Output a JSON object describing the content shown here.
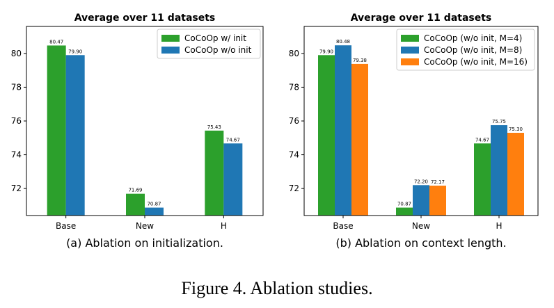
{
  "figure_caption": "Figure 4. Ablation studies.",
  "chart_data": [
    {
      "type": "bar",
      "title": "Average over 11 datasets",
      "subcaption": "(a) Ablation on initialization.",
      "categories": [
        "Base",
        "New",
        "H"
      ],
      "series": [
        {
          "name": "CoCoOp w/ init",
          "color": "#2ca02c",
          "values": [
            80.47,
            71.69,
            75.43
          ],
          "labels": [
            "80.47",
            "71.69",
            "75.43"
          ]
        },
        {
          "name": "CoCoOp w/o init",
          "color": "#1f77b4",
          "values": [
            79.9,
            70.87,
            74.67
          ],
          "labels": [
            "79.90",
            "70.87",
            "74.67"
          ]
        }
      ],
      "ylim": [
        70.4,
        81.6
      ],
      "yticks": [
        "72",
        "74",
        "76",
        "78",
        "80"
      ],
      "legend_position": "upper-right",
      "xlabel": "",
      "ylabel": ""
    },
    {
      "type": "bar",
      "title": "Average over 11 datasets",
      "subcaption": "(b) Ablation on context length.",
      "categories": [
        "Base",
        "New",
        "H"
      ],
      "series": [
        {
          "name": "CoCoOp (w/o init, M=4)",
          "color": "#2ca02c",
          "values": [
            79.9,
            70.87,
            74.67
          ],
          "labels": [
            "79.90",
            "70.87",
            "74.67"
          ]
        },
        {
          "name": "CoCoOp (w/o init, M=8)",
          "color": "#1f77b4",
          "values": [
            80.48,
            72.2,
            75.75
          ],
          "labels": [
            "80.48",
            "72.20",
            "75.75"
          ]
        },
        {
          "name": "CoCoOp (w/o init, M=16)",
          "color": "#ff7f0e",
          "values": [
            79.38,
            72.17,
            75.3
          ],
          "labels": [
            "79.38",
            "72.17",
            "75.30"
          ]
        }
      ],
      "ylim": [
        70.4,
        81.6
      ],
      "yticks": [
        "72",
        "74",
        "76",
        "78",
        "80"
      ],
      "legend_position": "upper-right",
      "xlabel": "",
      "ylabel": ""
    }
  ]
}
